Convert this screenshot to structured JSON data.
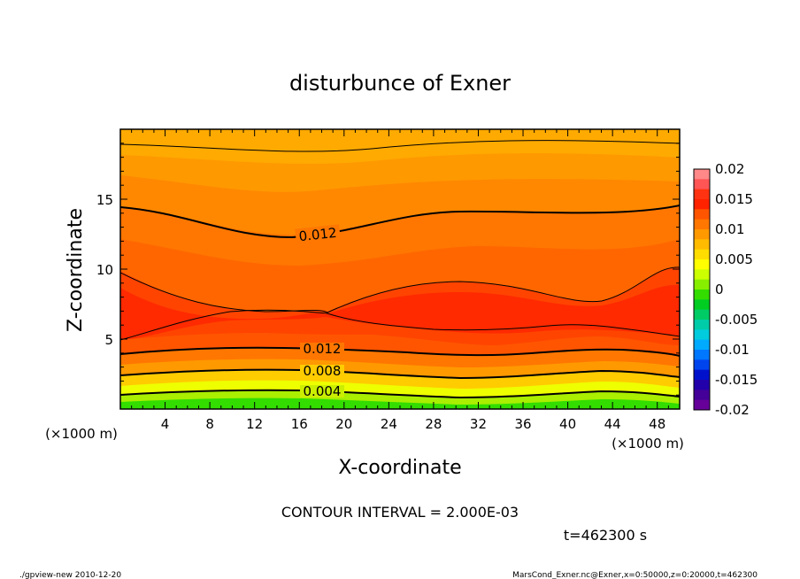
{
  "chart_data": {
    "type": "contour",
    "title": "disturbunce of Exner",
    "xlabel": "X-coordinate",
    "ylabel": "Z-coordinate",
    "x_unit": "(×1000 m)",
    "x_unit_right": "(×1000 m)",
    "xlim": [
      0,
      50
    ],
    "ylim": [
      0,
      20
    ],
    "x_ticks": [
      "4",
      "8",
      "12",
      "16",
      "20",
      "24",
      "28",
      "32",
      "36",
      "40",
      "44",
      "48"
    ],
    "y_ticks": [
      "5",
      "10",
      "15"
    ],
    "colorbar": {
      "labels": [
        "0.02",
        "0.015",
        "0.01",
        "0.005",
        "0",
        "-0.005",
        "-0.01",
        "-0.015",
        "-0.02"
      ],
      "levels": [
        0.02,
        0.015,
        0.01,
        0.005,
        0,
        -0.005,
        -0.01,
        -0.015,
        -0.02
      ]
    },
    "contour_labels": [
      "0.012",
      "0.012",
      "0.008",
      "0.004"
    ],
    "contour_interval_text": "CONTOUR INTERVAL = 2.000E-03",
    "time_text": "t=462300 s"
  },
  "footer": {
    "left": "./gpview-new   2010-12-20",
    "right": "MarsCond_Exner.nc@Exner,x=0:50000,z=0:20000,t=462300"
  },
  "colors": {
    "dark_orange": "#ff9900",
    "orange": "#ff7700",
    "red_orange": "#ff5500",
    "red": "#ff2200",
    "yellow": "#ffee00",
    "green": "#22dd00"
  }
}
